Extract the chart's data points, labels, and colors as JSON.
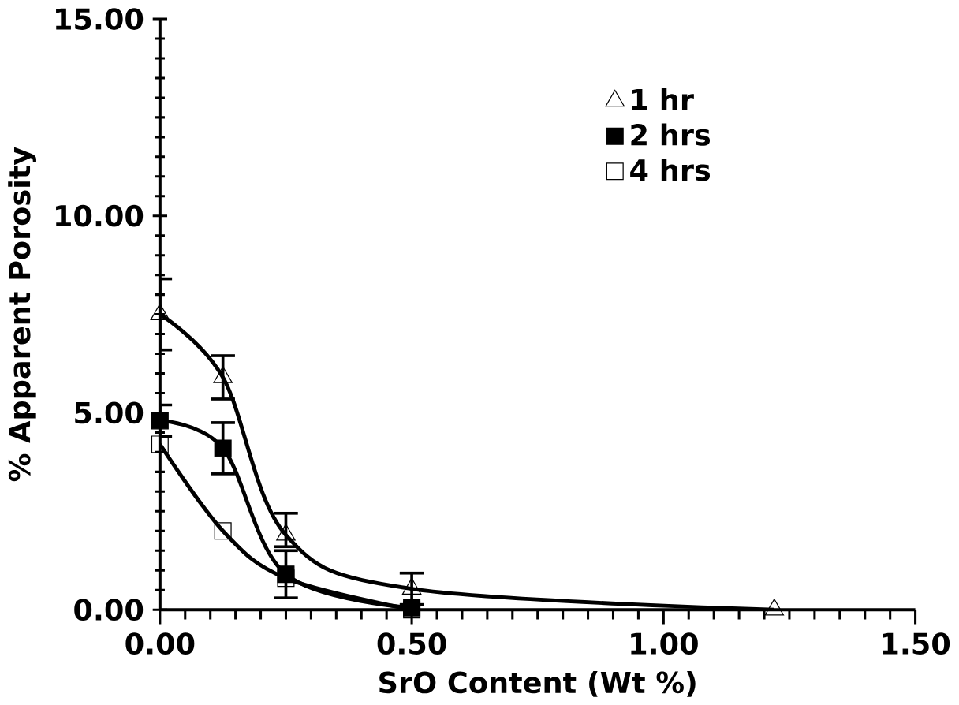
{
  "chart_data": {
    "type": "line",
    "xlabel": "SrO Content (Wt %)",
    "ylabel": "% Apparent Porosity",
    "xlim": [
      0,
      1.5
    ],
    "xticks": [
      {
        "value": 0,
        "label": "0.00"
      },
      {
        "value": 0.5,
        "label": "0.50"
      },
      {
        "value": 1,
        "label": "1.00"
      },
      {
        "value": 1.5,
        "label": "1.50"
      }
    ],
    "ylim": [
      0,
      15
    ],
    "yticks": [
      {
        "value": 0,
        "label": "0.00"
      },
      {
        "value": 5,
        "label": "5.00"
      },
      {
        "value": 10,
        "label": "10.00"
      },
      {
        "value": 15,
        "label": "15.00"
      }
    ],
    "legend": "top right",
    "grid": false,
    "series": [
      {
        "name": "1 hr",
        "color": "#000000",
        "marker": "triangle",
        "x": [
          0,
          0.125,
          0.25,
          0.5,
          1.22
        ],
        "values": [
          7.5,
          5.9,
          1.9,
          0.53,
          0.0
        ],
        "errors": [
          0.9,
          0.55,
          [
            1.6,
            2.45
          ],
          0.4,
          null
        ]
      },
      {
        "name": "2 hrs",
        "color": "#000000",
        "marker": "square",
        "x": [
          0,
          0.125,
          0.25,
          0.5
        ],
        "values": [
          4.8,
          4.1,
          0.9,
          0.05
        ],
        "errors": [
          0.4,
          0.65,
          0.6,
          null
        ]
      },
      {
        "name": "4 hrs",
        "color": "#000000",
        "marker": "square-open",
        "x": [
          0,
          0.125,
          0.25,
          0.5
        ],
        "values": [
          4.2,
          2.0,
          0.8,
          0.0
        ],
        "errors": [
          null,
          null,
          null,
          null
        ]
      }
    ]
  }
}
